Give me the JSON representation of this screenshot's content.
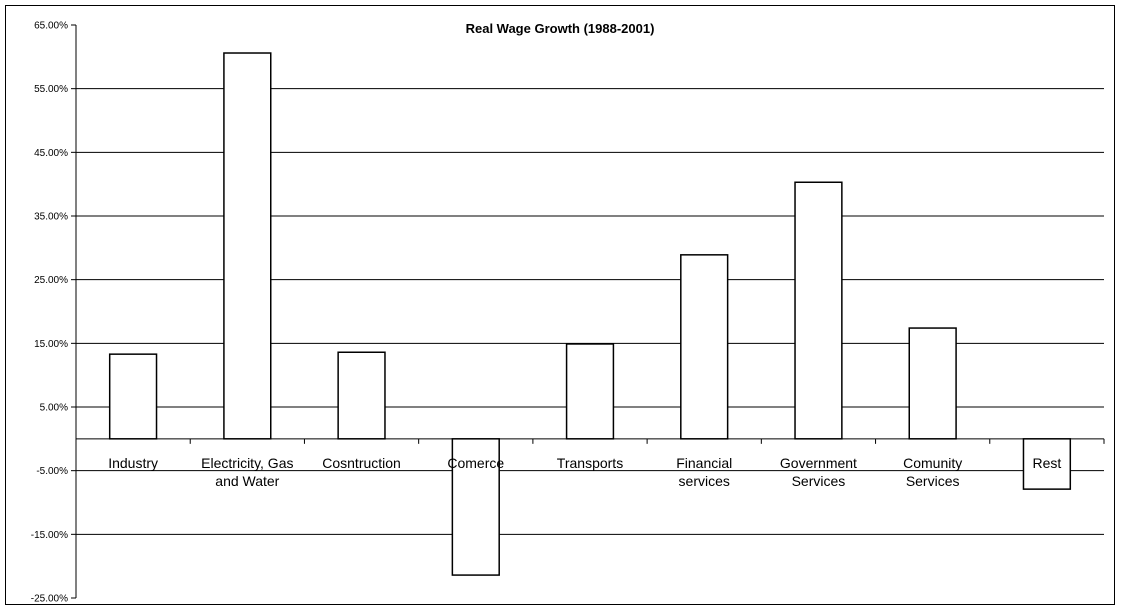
{
  "chart_data": {
    "type": "bar",
    "title": "Real Wage Growth (1988-2001)",
    "xlabel": "",
    "ylabel": "",
    "categories": [
      [
        "Industry"
      ],
      [
        "Electricity, Gas",
        "and Water"
      ],
      [
        "Cosntruction"
      ],
      [
        "Comerce"
      ],
      [
        "Transports"
      ],
      [
        "Financial",
        "services"
      ],
      [
        "Government",
        "Services"
      ],
      [
        "Comunity",
        "Services"
      ],
      [
        "Rest"
      ]
    ],
    "values": [
      13.3,
      60.6,
      13.6,
      -21.4,
      14.9,
      28.9,
      40.3,
      17.4,
      -7.9
    ],
    "ylim": [
      -25,
      65
    ],
    "yticks": [
      65,
      55,
      45,
      35,
      25,
      15,
      5,
      -5,
      -15,
      -25
    ],
    "ytick_labels": [
      "65.00%",
      "55.00%",
      "45.00%",
      "35.00%",
      "25.00%",
      "15.00%",
      "5.00%",
      "-5.00%",
      "-15.00%",
      "-25.00%"
    ],
    "grid": true,
    "legend": "none",
    "colors": {
      "bar_fill": "#ffffff",
      "bar_stroke": "#000000",
      "grid": "#000000",
      "axis": "#000000"
    }
  }
}
